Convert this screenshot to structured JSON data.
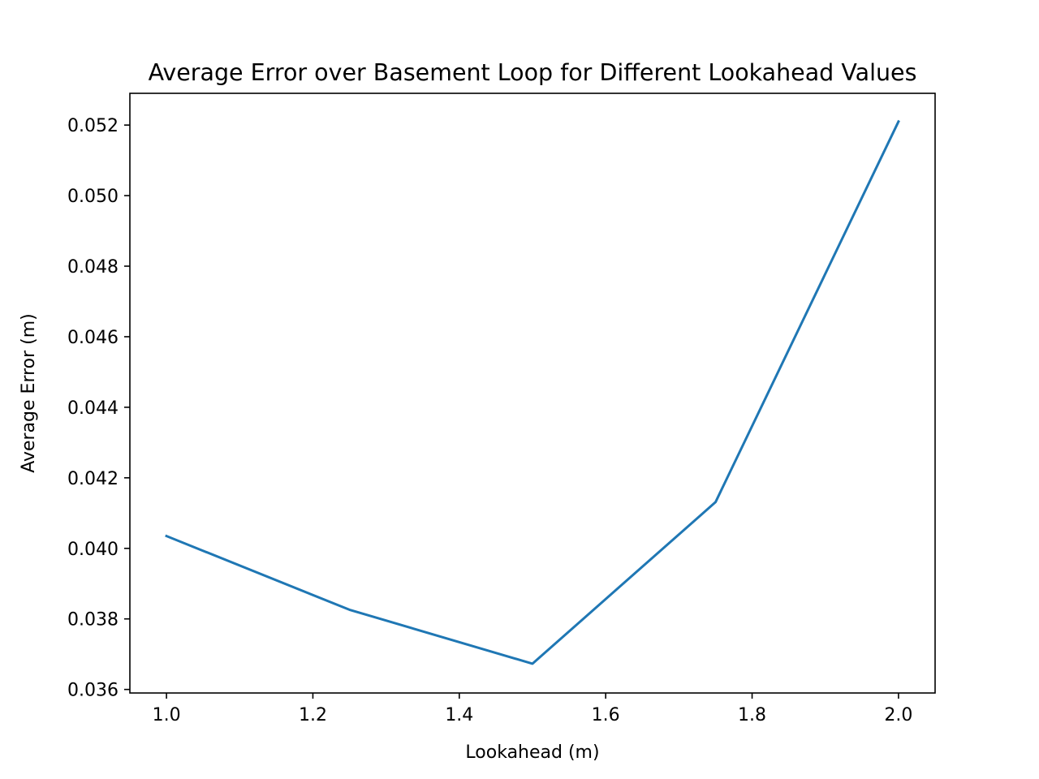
{
  "chart_data": {
    "type": "line",
    "title": "Average Error over Basement Loop for Different Lookahead Values",
    "xlabel": "Lookahead (m)",
    "ylabel": "Average Error (m)",
    "xlim": [
      0.95,
      2.05
    ],
    "ylim": [
      0.0359,
      0.0529
    ],
    "xticks": [
      1.0,
      1.2,
      1.4,
      1.6,
      1.8,
      2.0
    ],
    "xtick_labels": [
      "1.0",
      "1.2",
      "1.4",
      "1.6",
      "1.8",
      "2.0"
    ],
    "yticks": [
      0.036,
      0.038,
      0.04,
      0.042,
      0.044,
      0.046,
      0.048,
      0.05,
      0.052
    ],
    "ytick_labels": [
      "0.036",
      "0.038",
      "0.040",
      "0.042",
      "0.044",
      "0.046",
      "0.048",
      "0.050",
      "0.052"
    ],
    "grid": false,
    "series": [
      {
        "color": "#1f77b4",
        "x": [
          1.0,
          1.25,
          1.5,
          1.75,
          2.0
        ],
        "y": [
          0.04035,
          0.03826,
          0.03673,
          0.04131,
          0.0521
        ]
      }
    ]
  }
}
